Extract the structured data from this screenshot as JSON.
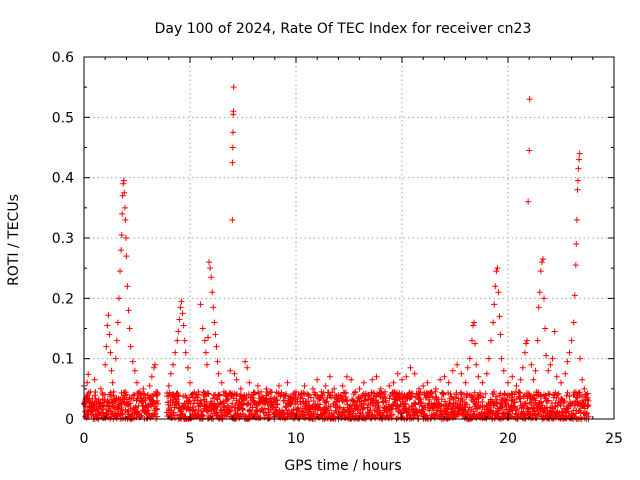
{
  "chart_data": {
    "type": "scatter",
    "title": "Day 100 of 2024, Rate Of TEC Index for receiver cn23",
    "xlabel": "GPS time / hours",
    "ylabel": "ROTI / TECUs",
    "xlim": [
      0,
      25
    ],
    "ylim": [
      0,
      0.6
    ],
    "x_ticks": [
      0,
      5,
      10,
      15,
      20,
      25
    ],
    "x_tick_labels": [
      "0",
      "5",
      "10",
      "15",
      "20",
      "25"
    ],
    "y_ticks": [
      0,
      0.1,
      0.2,
      0.3,
      0.4,
      0.5,
      0.6
    ],
    "y_tick_labels": [
      "0",
      "0.1",
      "0.2",
      "0.3",
      "0.4",
      "0.5",
      "0.6"
    ],
    "grid": true,
    "marker": "plus",
    "color": "#ff0000",
    "series": [
      {
        "name": "ROTI",
        "points": [
          [
            0.0,
            0.055
          ],
          [
            0.05,
            0.012
          ],
          [
            0.1,
            0.035
          ],
          [
            0.15,
            0.06
          ],
          [
            0.2,
            0.074
          ],
          [
            0.25,
            0.02
          ],
          [
            0.3,
            0.045
          ],
          [
            0.4,
            0.025
          ],
          [
            0.5,
            0.065
          ],
          [
            0.6,
            0.03
          ],
          [
            0.7,
            0.018
          ],
          [
            0.8,
            0.05
          ],
          [
            0.9,
            0.04
          ],
          [
            1.0,
            0.09
          ],
          [
            1.05,
            0.12
          ],
          [
            1.1,
            0.155
          ],
          [
            1.15,
            0.172
          ],
          [
            1.2,
            0.14
          ],
          [
            1.25,
            0.11
          ],
          [
            1.3,
            0.08
          ],
          [
            1.35,
            0.06
          ],
          [
            1.4,
            0.045
          ],
          [
            1.5,
            0.1
          ],
          [
            1.55,
            0.13
          ],
          [
            1.6,
            0.16
          ],
          [
            1.65,
            0.2
          ],
          [
            1.7,
            0.245
          ],
          [
            1.75,
            0.28
          ],
          [
            1.78,
            0.305
          ],
          [
            1.8,
            0.34
          ],
          [
            1.82,
            0.37
          ],
          [
            1.85,
            0.39
          ],
          [
            1.88,
            0.395
          ],
          [
            1.9,
            0.375
          ],
          [
            1.93,
            0.35
          ],
          [
            1.95,
            0.33
          ],
          [
            1.98,
            0.3
          ],
          [
            2.0,
            0.27
          ],
          [
            2.05,
            0.22
          ],
          [
            2.1,
            0.18
          ],
          [
            2.15,
            0.15
          ],
          [
            2.2,
            0.12
          ],
          [
            2.3,
            0.095
          ],
          [
            2.4,
            0.08
          ],
          [
            2.5,
            0.06
          ],
          [
            2.6,
            0.045
          ],
          [
            2.7,
            0.035
          ],
          [
            2.8,
            0.05
          ],
          [
            2.9,
            0.03
          ],
          [
            3.0,
            0.04
          ],
          [
            3.1,
            0.055
          ],
          [
            3.2,
            0.07
          ],
          [
            3.3,
            0.085
          ],
          [
            3.35,
            0.09
          ],
          [
            3.4,
            0.045
          ],
          [
            3.45,
            0.03
          ],
          [
            4.0,
            0.055
          ],
          [
            4.1,
            0.075
          ],
          [
            4.2,
            0.09
          ],
          [
            4.3,
            0.11
          ],
          [
            4.4,
            0.13
          ],
          [
            4.45,
            0.145
          ],
          [
            4.5,
            0.165
          ],
          [
            4.55,
            0.185
          ],
          [
            4.6,
            0.195
          ],
          [
            4.65,
            0.175
          ],
          [
            4.7,
            0.155
          ],
          [
            4.75,
            0.13
          ],
          [
            4.8,
            0.11
          ],
          [
            4.9,
            0.085
          ],
          [
            5.0,
            0.06
          ],
          [
            5.1,
            0.04
          ],
          [
            5.2,
            0.03
          ],
          [
            5.4,
            0.045
          ],
          [
            5.5,
            0.19
          ],
          [
            5.6,
            0.15
          ],
          [
            5.7,
            0.13
          ],
          [
            5.75,
            0.11
          ],
          [
            5.8,
            0.09
          ],
          [
            5.85,
            0.135
          ],
          [
            5.9,
            0.26
          ],
          [
            5.95,
            0.25
          ],
          [
            6.0,
            0.235
          ],
          [
            6.05,
            0.21
          ],
          [
            6.1,
            0.185
          ],
          [
            6.15,
            0.16
          ],
          [
            6.2,
            0.14
          ],
          [
            6.25,
            0.12
          ],
          [
            6.3,
            0.095
          ],
          [
            6.35,
            0.075
          ],
          [
            6.5,
            0.06
          ],
          [
            6.6,
            0.045
          ],
          [
            6.7,
            0.03
          ],
          [
            6.9,
            0.08
          ],
          [
            7.0,
            0.33
          ],
          [
            7.01,
            0.425
          ],
          [
            7.02,
            0.45
          ],
          [
            7.03,
            0.475
          ],
          [
            7.04,
            0.505
          ],
          [
            7.05,
            0.51
          ],
          [
            7.06,
            0.55
          ],
          [
            7.1,
            0.075
          ],
          [
            7.2,
            0.065
          ],
          [
            7.4,
            0.05
          ],
          [
            7.6,
            0.095
          ],
          [
            7.7,
            0.085
          ],
          [
            7.8,
            0.06
          ],
          [
            8.0,
            0.04
          ],
          [
            8.2,
            0.055
          ],
          [
            8.4,
            0.03
          ],
          [
            8.6,
            0.05
          ],
          [
            8.8,
            0.045
          ],
          [
            9.0,
            0.035
          ],
          [
            9.2,
            0.055
          ],
          [
            9.4,
            0.04
          ],
          [
            9.6,
            0.06
          ],
          [
            9.8,
            0.03
          ],
          [
            10.0,
            0.045
          ],
          [
            10.2,
            0.035
          ],
          [
            10.4,
            0.055
          ],
          [
            10.6,
            0.04
          ],
          [
            10.8,
            0.05
          ],
          [
            11.0,
            0.065
          ],
          [
            11.2,
            0.045
          ],
          [
            11.4,
            0.055
          ],
          [
            11.6,
            0.07
          ],
          [
            11.8,
            0.05
          ],
          [
            12.0,
            0.04
          ],
          [
            12.2,
            0.055
          ],
          [
            12.4,
            0.07
          ],
          [
            12.6,
            0.065
          ],
          [
            12.8,
            0.045
          ],
          [
            13.0,
            0.05
          ],
          [
            13.2,
            0.06
          ],
          [
            13.4,
            0.04
          ],
          [
            13.6,
            0.065
          ],
          [
            13.8,
            0.07
          ],
          [
            14.0,
            0.05
          ],
          [
            14.2,
            0.045
          ],
          [
            14.4,
            0.055
          ],
          [
            14.6,
            0.06
          ],
          [
            14.8,
            0.075
          ],
          [
            15.0,
            0.065
          ],
          [
            15.2,
            0.07
          ],
          [
            15.4,
            0.085
          ],
          [
            15.6,
            0.075
          ],
          [
            15.8,
            0.05
          ],
          [
            16.0,
            0.055
          ],
          [
            16.2,
            0.06
          ],
          [
            16.4,
            0.045
          ],
          [
            16.6,
            0.05
          ],
          [
            16.8,
            0.065
          ],
          [
            17.0,
            0.07
          ],
          [
            17.2,
            0.06
          ],
          [
            17.4,
            0.08
          ],
          [
            17.6,
            0.09
          ],
          [
            17.8,
            0.075
          ],
          [
            18.0,
            0.06
          ],
          [
            18.1,
            0.085
          ],
          [
            18.2,
            0.1
          ],
          [
            18.3,
            0.13
          ],
          [
            18.35,
            0.155
          ],
          [
            18.4,
            0.16
          ],
          [
            18.45,
            0.125
          ],
          [
            18.5,
            0.09
          ],
          [
            18.6,
            0.07
          ],
          [
            18.8,
            0.06
          ],
          [
            19.0,
            0.075
          ],
          [
            19.1,
            0.1
          ],
          [
            19.2,
            0.13
          ],
          [
            19.3,
            0.16
          ],
          [
            19.35,
            0.19
          ],
          [
            19.4,
            0.22
          ],
          [
            19.45,
            0.245
          ],
          [
            19.5,
            0.25
          ],
          [
            19.55,
            0.21
          ],
          [
            19.6,
            0.17
          ],
          [
            19.65,
            0.14
          ],
          [
            19.7,
            0.1
          ],
          [
            19.8,
            0.08
          ],
          [
            20.0,
            0.06
          ],
          [
            20.2,
            0.07
          ],
          [
            20.4,
            0.055
          ],
          [
            20.6,
            0.065
          ],
          [
            20.7,
            0.085
          ],
          [
            20.8,
            0.11
          ],
          [
            20.85,
            0.125
          ],
          [
            20.9,
            0.13
          ],
          [
            20.95,
            0.36
          ],
          [
            21.0,
            0.445
          ],
          [
            21.02,
            0.53
          ],
          [
            21.1,
            0.09
          ],
          [
            21.2,
            0.065
          ],
          [
            21.3,
            0.08
          ],
          [
            21.4,
            0.13
          ],
          [
            21.45,
            0.185
          ],
          [
            21.5,
            0.21
          ],
          [
            21.55,
            0.245
          ],
          [
            21.6,
            0.26
          ],
          [
            21.65,
            0.265
          ],
          [
            21.7,
            0.2
          ],
          [
            21.75,
            0.15
          ],
          [
            21.8,
            0.105
          ],
          [
            21.9,
            0.08
          ],
          [
            22.0,
            0.09
          ],
          [
            22.1,
            0.1
          ],
          [
            22.2,
            0.145
          ],
          [
            22.3,
            0.07
          ],
          [
            22.5,
            0.06
          ],
          [
            22.7,
            0.075
          ],
          [
            22.8,
            0.095
          ],
          [
            22.9,
            0.11
          ],
          [
            23.0,
            0.13
          ],
          [
            23.1,
            0.16
          ],
          [
            23.15,
            0.205
          ],
          [
            23.2,
            0.255
          ],
          [
            23.22,
            0.29
          ],
          [
            23.25,
            0.33
          ],
          [
            23.28,
            0.38
          ],
          [
            23.3,
            0.395
          ],
          [
            23.32,
            0.415
          ],
          [
            23.35,
            0.43
          ],
          [
            23.38,
            0.44
          ],
          [
            23.4,
            0.1
          ],
          [
            23.5,
            0.065
          ],
          [
            23.6,
            0.05
          ],
          [
            23.7,
            0.04
          ],
          [
            23.8,
            0.03
          ]
        ]
      }
    ],
    "dense_band": {
      "note": "dense cluster of points between 0 and ~0.04 ROTI across observed time spans",
      "segments": [
        [
          0.0,
          3.5
        ],
        [
          3.9,
          23.8
        ]
      ],
      "ymin": 0.0,
      "ymax": 0.045
    }
  }
}
